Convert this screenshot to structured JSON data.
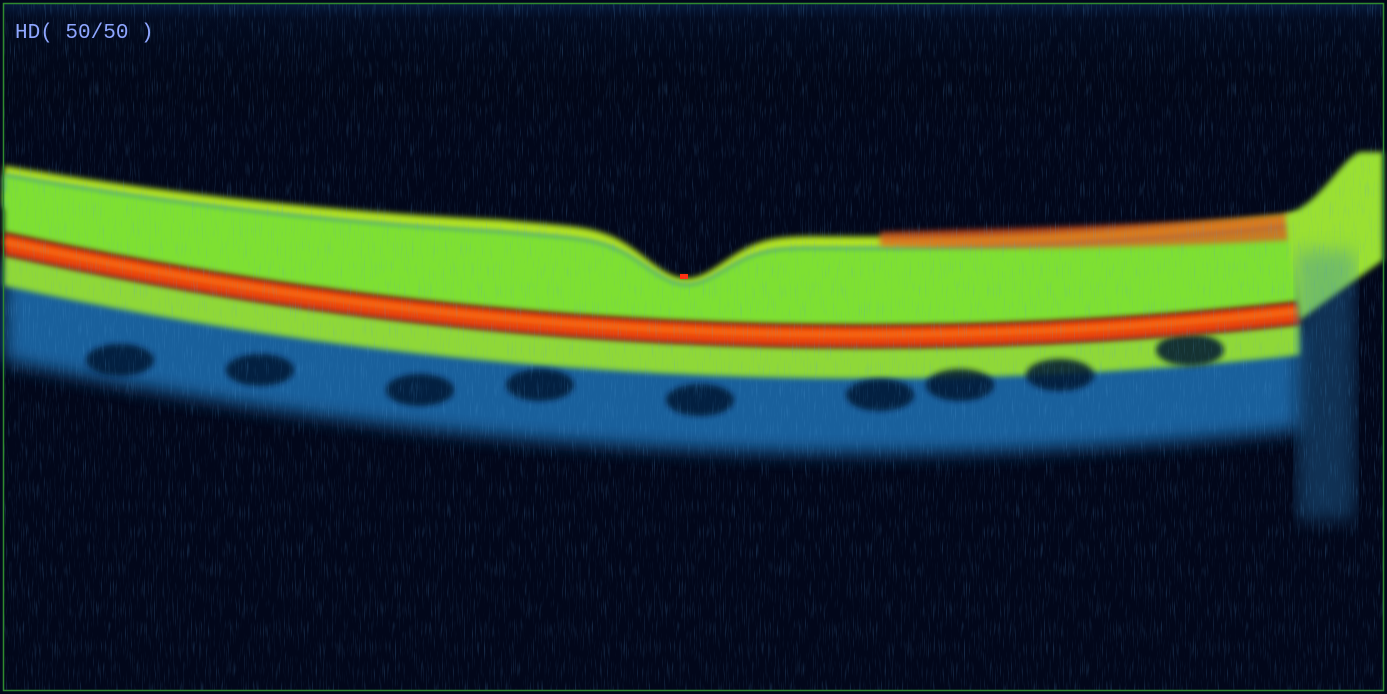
{
  "overlay_label": "HD( 50/50 )"
}
